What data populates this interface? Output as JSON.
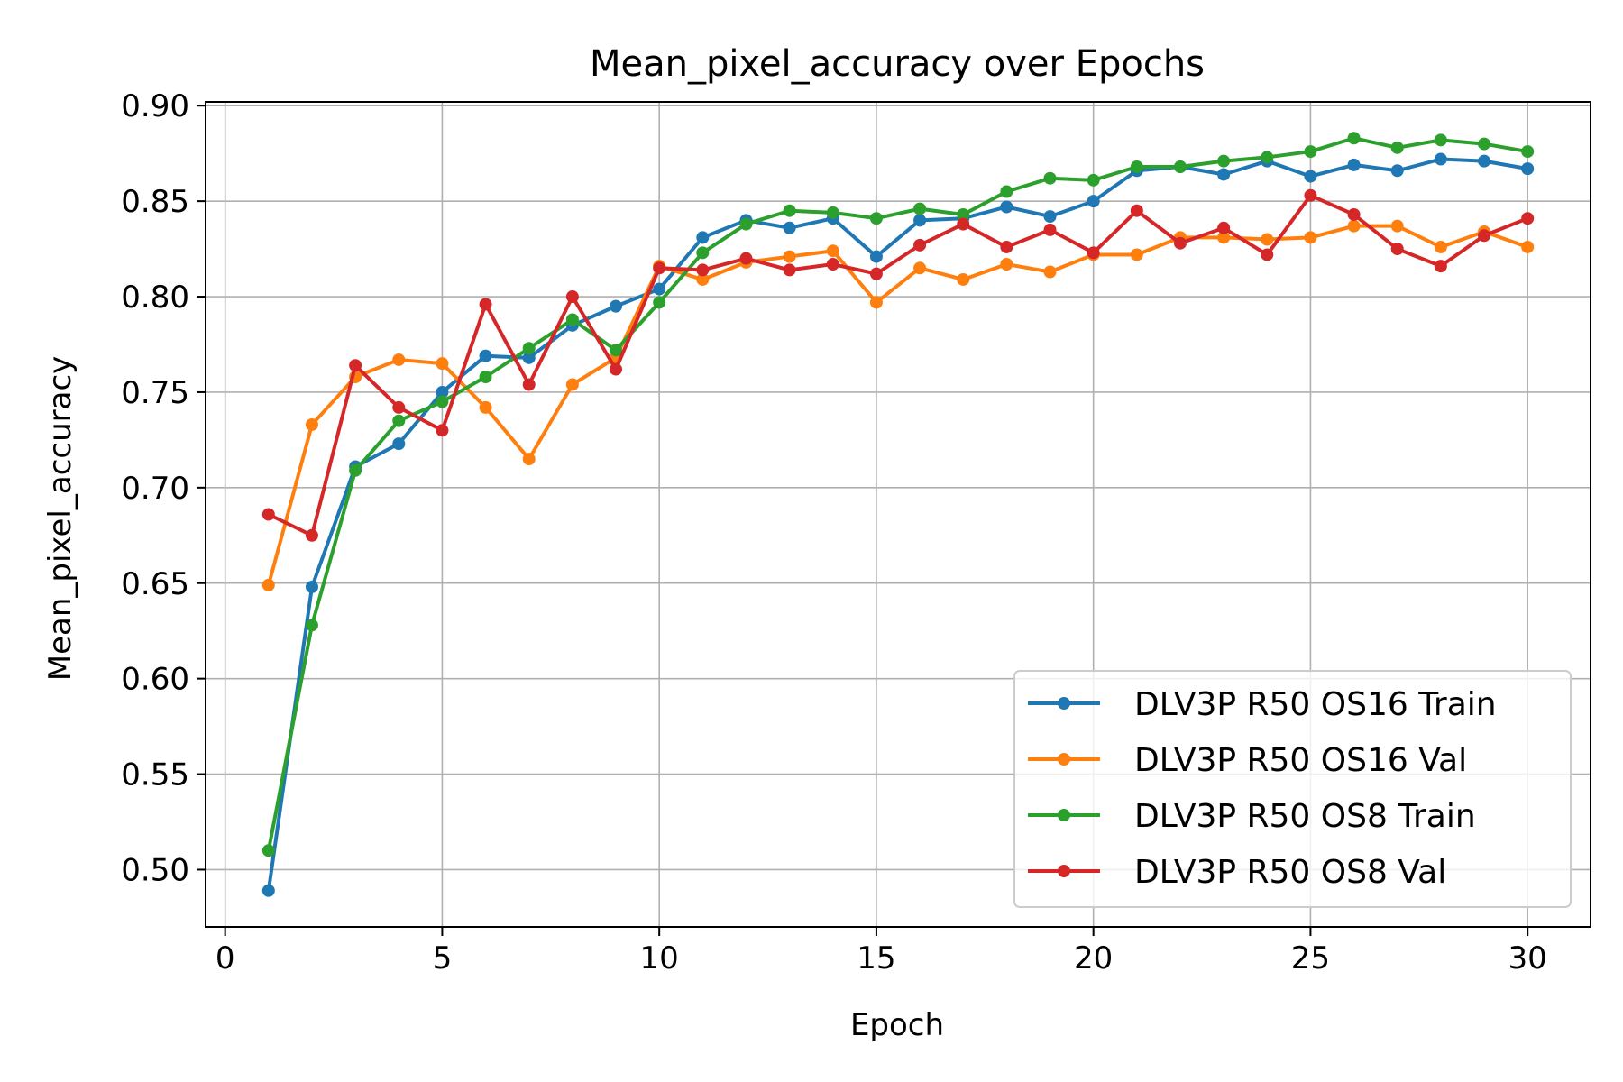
{
  "chart_data": {
    "type": "line",
    "title": "Mean_pixel_accuracy over Epochs",
    "xlabel": "Epoch",
    "ylabel": "Mean_pixel_accuracy",
    "xlim": [
      -0.45,
      31.45
    ],
    "ylim": [
      0.47,
      0.902
    ],
    "xticks": [
      0,
      5,
      10,
      15,
      20,
      25,
      30
    ],
    "xtick_labels": [
      "0",
      "5",
      "10",
      "15",
      "20",
      "25",
      "30"
    ],
    "yticks": [
      0.5,
      0.55,
      0.6,
      0.65,
      0.7,
      0.75,
      0.8,
      0.85,
      0.9
    ],
    "ytick_labels": [
      "0.50",
      "0.55",
      "0.60",
      "0.65",
      "0.70",
      "0.75",
      "0.80",
      "0.85",
      "0.90"
    ],
    "grid": true,
    "legend_position": "lower-right",
    "x": [
      1,
      2,
      3,
      4,
      5,
      6,
      7,
      8,
      9,
      10,
      11,
      12,
      13,
      14,
      15,
      16,
      17,
      18,
      19,
      20,
      21,
      22,
      23,
      24,
      25,
      26,
      27,
      28,
      29,
      30
    ],
    "series": [
      {
        "name": "DLV3P R50 OS16 Train",
        "color": "#1f77b4",
        "values": [
          0.489,
          0.648,
          0.711,
          0.723,
          0.75,
          0.769,
          0.768,
          0.785,
          0.795,
          0.804,
          0.831,
          0.84,
          0.836,
          0.841,
          0.821,
          0.84,
          0.841,
          0.847,
          0.842,
          0.85,
          0.866,
          0.868,
          0.864,
          0.871,
          0.863,
          0.869,
          0.866,
          0.872,
          0.871,
          0.867
        ]
      },
      {
        "name": "DLV3P R50 OS16 Val",
        "color": "#ff7f0e",
        "values": [
          0.649,
          0.733,
          0.758,
          0.767,
          0.765,
          0.742,
          0.715,
          0.754,
          0.768,
          0.816,
          0.809,
          0.818,
          0.821,
          0.824,
          0.797,
          0.815,
          0.809,
          0.817,
          0.813,
          0.822,
          0.822,
          0.831,
          0.831,
          0.83,
          0.831,
          0.837,
          0.837,
          0.826,
          0.834,
          0.826
        ]
      },
      {
        "name": "DLV3P R50 OS8 Train",
        "color": "#2ca02c",
        "values": [
          0.51,
          0.628,
          0.709,
          0.735,
          0.745,
          0.758,
          0.773,
          0.788,
          0.772,
          0.797,
          0.823,
          0.838,
          0.845,
          0.844,
          0.841,
          0.846,
          0.843,
          0.855,
          0.862,
          0.861,
          0.868,
          0.868,
          0.871,
          0.873,
          0.876,
          0.883,
          0.878,
          0.882,
          0.88,
          0.876
        ]
      },
      {
        "name": "DLV3P R50 OS8 Val",
        "color": "#d62728",
        "values": [
          0.686,
          0.675,
          0.764,
          0.742,
          0.73,
          0.796,
          0.754,
          0.8,
          0.762,
          0.815,
          0.814,
          0.82,
          0.814,
          0.817,
          0.812,
          0.827,
          0.838,
          0.826,
          0.835,
          0.823,
          0.845,
          0.828,
          0.836,
          0.822,
          0.853,
          0.843,
          0.825,
          0.816,
          0.832,
          0.841
        ]
      }
    ]
  }
}
